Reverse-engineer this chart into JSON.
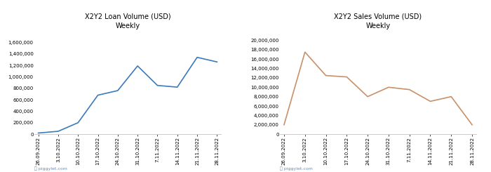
{
  "left_title": "X2Y2 Loan Volume (USD)\nWeekly",
  "right_title": "X2Y2 Sales Volume (USD)\nWeekly",
  "x_labels": [
    "26.09.2022",
    "3.10.2022",
    "10.10.2022",
    "17.10.2022",
    "24.10.2022",
    "31.10.2022",
    "7.11.2022",
    "14.11.2022",
    "21.11.2022",
    "28.11.2022"
  ],
  "loan_values": [
    20000,
    50000,
    200000,
    680000,
    760000,
    1190000,
    850000,
    820000,
    1340000,
    1260000
  ],
  "sales_values": [
    2000000,
    17500000,
    12500000,
    12200000,
    8000000,
    10000000,
    9500000,
    7000000,
    8000000,
    2000000
  ],
  "loan_color": "#3a7abf",
  "sales_color": "#c8916a",
  "loan_ylim": [
    0,
    1800000
  ],
  "sales_ylim": [
    0,
    22000000
  ],
  "loan_yticks": [
    0,
    200000,
    400000,
    600000,
    800000,
    1000000,
    1200000,
    1400000,
    1600000
  ],
  "sales_yticks": [
    0,
    2000000,
    4000000,
    6000000,
    8000000,
    10000000,
    12000000,
    14000000,
    16000000,
    18000000,
    20000000
  ],
  "bg_color": "#ffffff",
  "title_fontsize": 7,
  "tick_fontsize": 5,
  "line_width": 1.2,
  "watermark_color": "#5b8ec7",
  "watermark_text": "ⓘ piggylet.com",
  "spine_color": "#cccccc"
}
